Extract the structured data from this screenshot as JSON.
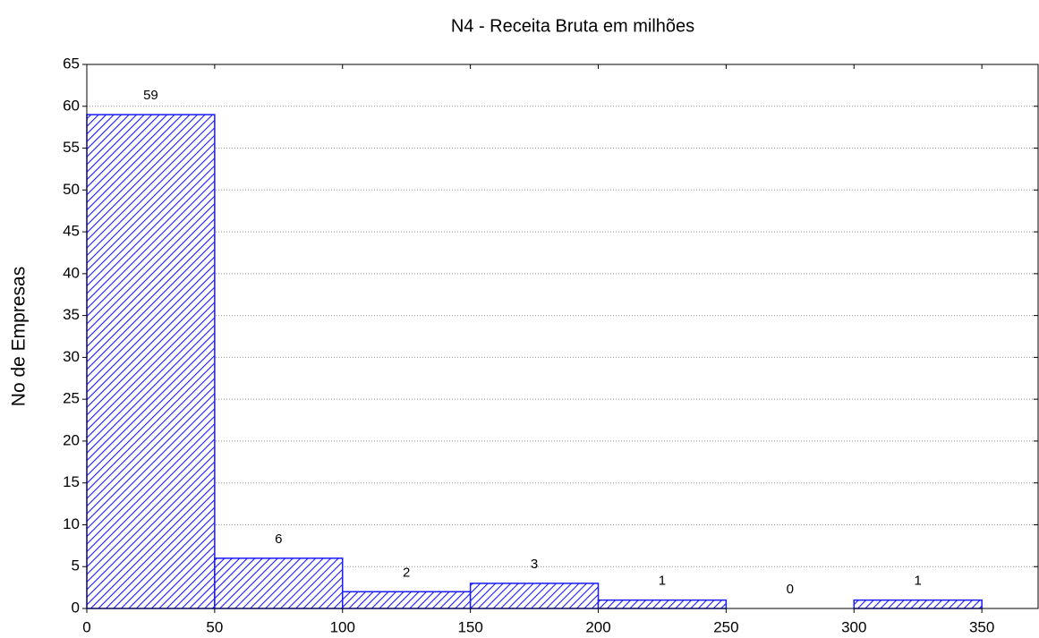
{
  "chart_data": {
    "type": "histogram",
    "title": "N4 - Receita Bruta em milhões",
    "ylabel": "No de Empresas",
    "bins": [
      0,
      50,
      100,
      150,
      200,
      250,
      300,
      350
    ],
    "counts": [
      59,
      6,
      2,
      3,
      1,
      0,
      1
    ],
    "color": "#1a1aff",
    "xlim": [
      0,
      372
    ],
    "xticks": [
      0,
      50,
      100,
      150,
      200,
      250,
      300,
      350
    ],
    "ylim": [
      0,
      65
    ],
    "yticks": [
      0,
      5,
      10,
      15,
      20,
      25,
      30,
      35,
      40,
      45,
      50,
      55,
      60,
      65
    ],
    "grid": true
  }
}
